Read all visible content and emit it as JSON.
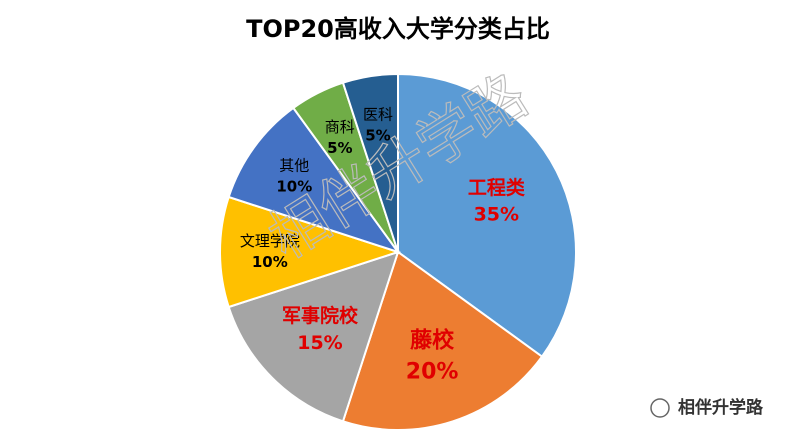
{
  "chart_data": {
    "type": "pie",
    "title": "TOP20高收入大学分类占比",
    "categories": [
      "工程类",
      "藤校",
      "军事院校",
      "文理学院",
      "其他",
      "商科",
      "医科"
    ],
    "values": [
      35,
      20,
      15,
      10,
      10,
      5,
      5
    ],
    "value_labels": [
      "35%",
      "20%",
      "15%",
      "10%",
      "10%",
      "5%",
      "5%"
    ],
    "colors": [
      "#5b9bd5",
      "#ed7d31",
      "#a5a5a5",
      "#ffc000",
      "#4472c4",
      "#70ad47",
      "#255e91"
    ],
    "label_colors": [
      "#e00000",
      "#e00000",
      "#e00000",
      "#000000",
      "#000000",
      "#000000",
      "#000000"
    ],
    "watermark": "相伴升学路",
    "source": "相伴升学路"
  }
}
